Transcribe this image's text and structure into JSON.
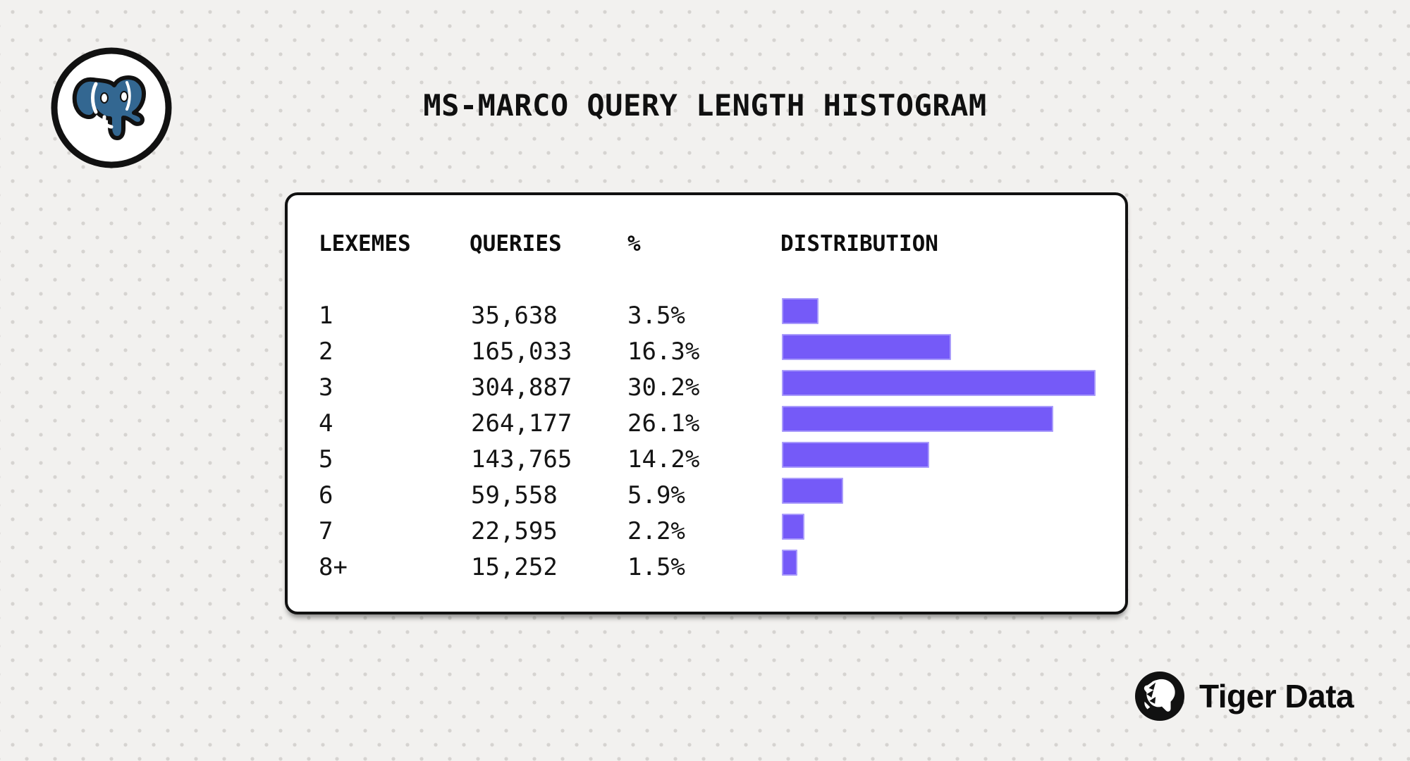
{
  "page": {
    "title": "MS-MARCO QUERY LENGTH HISTOGRAM"
  },
  "branding": {
    "footer_brand": "Tiger Data",
    "icons": {
      "top_left": "postgresql-elephant-icon",
      "footer": "tiger-head-icon"
    }
  },
  "table": {
    "headers": {
      "lexemes": "LEXEMES",
      "queries": "QUERIES",
      "pct": "%",
      "distribution": "DISTRIBUTION"
    },
    "rows": [
      {
        "lexemes": "1",
        "queries": "35,638",
        "pct": "3.5%",
        "pct_value": 3.5
      },
      {
        "lexemes": "2",
        "queries": "165,033",
        "pct": "16.3%",
        "pct_value": 16.3
      },
      {
        "lexemes": "3",
        "queries": "304,887",
        "pct": "30.2%",
        "pct_value": 30.2
      },
      {
        "lexemes": "4",
        "queries": "264,177",
        "pct": "26.1%",
        "pct_value": 26.1
      },
      {
        "lexemes": "5",
        "queries": "143,765",
        "pct": "14.2%",
        "pct_value": 14.2
      },
      {
        "lexemes": "6",
        "queries": "59,558",
        "pct": "5.9%",
        "pct_value": 5.9
      },
      {
        "lexemes": "7",
        "queries": "22,595",
        "pct": "2.2%",
        "pct_value": 2.2
      },
      {
        "lexemes": "8+",
        "queries": "15,252",
        "pct": "1.5%",
        "pct_value": 1.5
      }
    ]
  },
  "chart_data": {
    "type": "bar",
    "orientation": "horizontal",
    "title": "MS-MARCO QUERY LENGTH HISTOGRAM",
    "categories": [
      "1",
      "2",
      "3",
      "4",
      "5",
      "6",
      "7",
      "8+"
    ],
    "series": [
      {
        "name": "QUERIES",
        "values": [
          35638,
          165033,
          304887,
          264177,
          143765,
          59558,
          22595,
          15252
        ]
      },
      {
        "name": "%",
        "values": [
          3.5,
          16.3,
          30.2,
          26.1,
          14.2,
          5.9,
          2.2,
          1.5
        ]
      }
    ],
    "xlabel": "DISTRIBUTION",
    "ylabel": "LEXEMES",
    "max_pct": 30.2,
    "grid": false,
    "legend": false
  },
  "colors": {
    "background": "#f2f1ef",
    "dot_pattern": "#d6d4d1",
    "bar": "#755af8",
    "bar_border": "#a99bfb",
    "card_background": "#ffffff",
    "card_border": "#111111",
    "text": "#141414",
    "postgres_blue": "#336791"
  }
}
